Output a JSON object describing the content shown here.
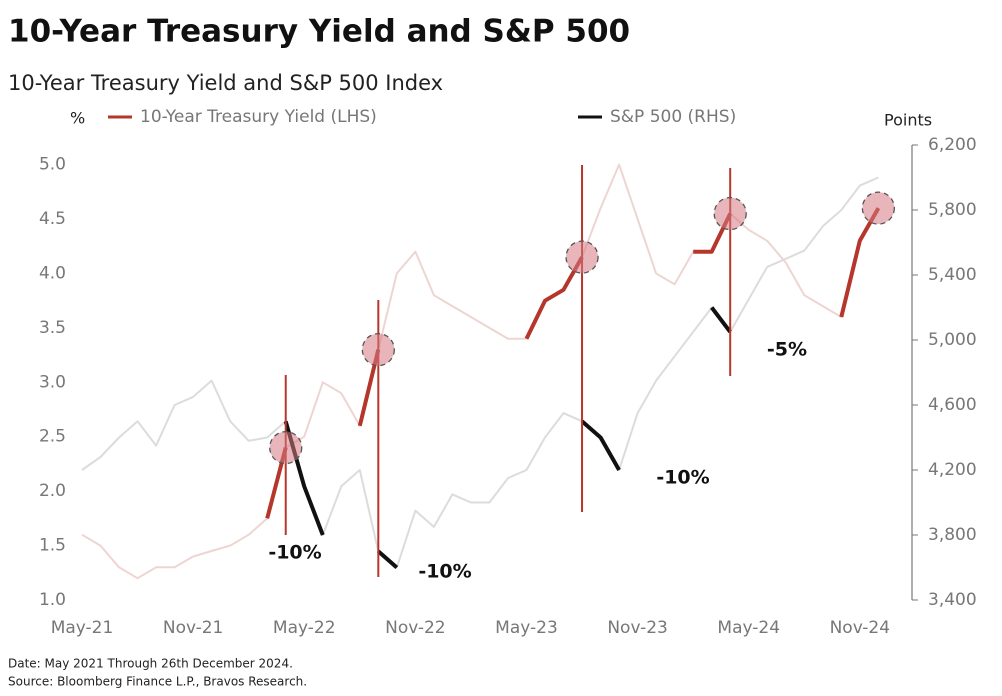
{
  "chart_data": {
    "type": "line",
    "title": "10-Year Treasury Yield and S&P 500",
    "subtitle": "10-Year Treasury Yield and S&P 500 Index",
    "y_label": "%",
    "y2_label": "Points",
    "notes": [
      "Date: May 2021 Through 26th December 2024.",
      "Source: Bloomberg Finance L.P., Bravos Research."
    ],
    "annotations": [
      "-10%",
      "-10%",
      "-10%",
      "-5%"
    ],
    "categories": [
      "May-21",
      null,
      null,
      null,
      null,
      null,
      "Nov-21",
      null,
      null,
      null,
      null,
      null,
      "May-22",
      null,
      null,
      null,
      null,
      null,
      "Nov-22",
      null,
      null,
      null,
      null,
      null,
      "May-23",
      null,
      null,
      null,
      null,
      null,
      "Nov-23",
      null,
      null,
      null,
      null,
      null,
      "May-24",
      null,
      null,
      null,
      null,
      null,
      "Nov-24",
      null
    ],
    "ylim": [
      1,
      5.18
    ],
    "yticks": [
      {
        "value": 1,
        "label": "1.0"
      },
      1.5,
      {
        "value": 2,
        "label": "2.0"
      },
      2.5,
      {
        "value": 3,
        "label": "3.0"
      },
      3.5,
      {
        "value": 4,
        "label": "4.0"
      },
      4.5,
      {
        "value": 5,
        "label": "5.0"
      }
    ],
    "y2lim": [
      3400,
      6200
    ],
    "y2ticks": [
      {
        "value": 3400,
        "label": "3,400"
      },
      {
        "value": 3800,
        "label": "3,800"
      },
      {
        "value": 4200,
        "label": "4,200"
      },
      {
        "value": 4600,
        "label": "4,600"
      },
      {
        "value": 5000,
        "label": "5,000"
      },
      {
        "value": 5400,
        "label": "5,400"
      },
      {
        "value": 5800,
        "label": "5,800"
      },
      {
        "value": 6200,
        "label": "6,200"
      }
    ],
    "series": [
      {
        "name": "10-Year Treasury Yield (LHS)",
        "color": "#b5362b",
        "faded_color": "#edd5d1",
        "values": [
          1.6,
          1.5,
          1.3,
          1.2,
          1.3,
          1.3,
          1.4,
          1.45,
          1.5,
          1.6,
          1.75,
          2.4,
          2.5,
          3.0,
          2.9,
          2.6,
          3.3,
          4.0,
          4.2,
          3.8,
          3.7,
          3.6,
          3.5,
          3.4,
          3.4,
          3.75,
          3.85,
          4.15,
          4.6,
          5.0,
          4.5,
          4.0,
          3.9,
          4.2,
          4.2,
          4.55,
          4.4,
          4.3,
          4.1,
          3.8,
          3.7,
          3.6,
          4.3,
          4.6
        ]
      },
      {
        "name": "S&P 500 (RHS)",
        "color": "#111111",
        "faded_color": "#dcdcdc",
        "axis": "y2",
        "values": [
          4200,
          4280,
          4400,
          4500,
          4350,
          4600,
          4650,
          4750,
          4500,
          4380,
          4400,
          4500,
          4100,
          3800,
          4100,
          4200,
          3700,
          3600,
          3950,
          3850,
          4050,
          4000,
          4000,
          4150,
          4200,
          4400,
          4550,
          4500,
          4400,
          4200,
          4550,
          4750,
          4900,
          5050,
          5200,
          5050,
          5250,
          5450,
          5500,
          5550,
          5700,
          5800,
          5950,
          6000
        ]
      },
      {
        "color": "#b5362b",
        "values": [
          null,
          null,
          null,
          null,
          null,
          null,
          null,
          null,
          null,
          null,
          1.75,
          2.4,
          null,
          null,
          null,
          2.6,
          3.3,
          null,
          null,
          null,
          null,
          null,
          null,
          null,
          3.4,
          3.75,
          3.85,
          4.15,
          null,
          null,
          null,
          null,
          null,
          4.2,
          4.2,
          4.55,
          null,
          null,
          null,
          null,
          null,
          3.6,
          4.3,
          4.6
        ]
      },
      {
        "color": "#111111",
        "axis": "y2",
        "values": [
          null,
          null,
          null,
          null,
          null,
          null,
          null,
          null,
          null,
          null,
          null,
          4500,
          4100,
          3800,
          null,
          null,
          3700,
          3600,
          null,
          null,
          null,
          null,
          null,
          null,
          null,
          null,
          null,
          4500,
          4400,
          4200,
          null,
          null,
          null,
          null,
          5200,
          5050,
          null,
          null,
          null,
          null,
          null,
          null,
          null,
          null
        ]
      }
    ]
  }
}
